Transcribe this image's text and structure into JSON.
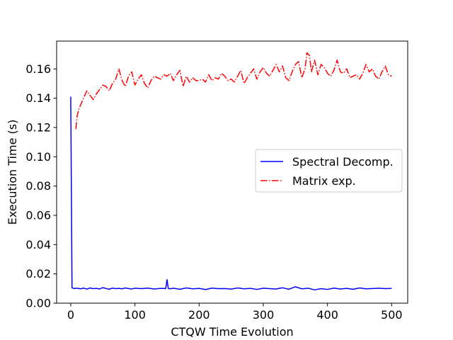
{
  "chart_data": {
    "type": "line",
    "title": "",
    "xlabel": "CTQW Time Evolution",
    "ylabel": "Execution Time (s)",
    "xlim": [
      -22,
      525
    ],
    "ylim": [
      0.0,
      0.179
    ],
    "xticks": [
      0,
      100,
      200,
      300,
      400,
      500
    ],
    "xtick_labels": [
      "0",
      "100",
      "200",
      "300",
      "400",
      "500"
    ],
    "yticks": [
      0.0,
      0.02,
      0.04,
      0.06,
      0.08,
      0.1,
      0.12,
      0.14,
      0.16
    ],
    "ytick_labels": [
      "0.00",
      "0.02",
      "0.04",
      "0.06",
      "0.08",
      "0.10",
      "0.12",
      "0.14",
      "0.16"
    ],
    "grid": false,
    "legend_position": "center-right",
    "series": [
      {
        "name": "Spectral Decomp.",
        "color": "#0000ff",
        "linestyle": "solid",
        "x": [
          0,
          2,
          5,
          10,
          15,
          20,
          25,
          30,
          35,
          40,
          45,
          50,
          55,
          60,
          65,
          70,
          75,
          80,
          85,
          90,
          95,
          100,
          110,
          120,
          130,
          140,
          148,
          150,
          152,
          154,
          160,
          170,
          180,
          190,
          200,
          210,
          220,
          230,
          240,
          250,
          260,
          270,
          280,
          290,
          300,
          310,
          320,
          330,
          340,
          350,
          360,
          370,
          380,
          390,
          400,
          410,
          420,
          430,
          440,
          450,
          460,
          470,
          480,
          490,
          500
        ],
        "values": [
          0.141,
          0.0105,
          0.01,
          0.0102,
          0.0098,
          0.0103,
          0.0096,
          0.0104,
          0.0099,
          0.0101,
          0.0097,
          0.0106,
          0.01,
          0.0095,
          0.0103,
          0.0099,
          0.0101,
          0.0098,
          0.0104,
          0.01,
          0.0097,
          0.0102,
          0.0099,
          0.0103,
          0.0097,
          0.0101,
          0.01,
          0.0161,
          0.01,
          0.0098,
          0.0102,
          0.0095,
          0.0104,
          0.0098,
          0.0101,
          0.0093,
          0.0103,
          0.0099,
          0.01,
          0.0096,
          0.0104,
          0.0098,
          0.0101,
          0.0094,
          0.0102,
          0.0099,
          0.0097,
          0.0105,
          0.0095,
          0.0112,
          0.0098,
          0.0102,
          0.0091,
          0.0099,
          0.0094,
          0.0103,
          0.0097,
          0.0101,
          0.0095,
          0.0104,
          0.0098,
          0.01,
          0.0102,
          0.0099,
          0.0101
        ]
      },
      {
        "name": "Matrix exp.",
        "color": "#ff0000",
        "linestyle": "dashdot",
        "x": [
          8,
          10,
          13,
          16,
          20,
          25,
          30,
          35,
          40,
          45,
          50,
          55,
          60,
          65,
          70,
          75,
          80,
          85,
          90,
          95,
          100,
          105,
          110,
          115,
          120,
          125,
          130,
          135,
          140,
          145,
          150,
          155,
          160,
          165,
          170,
          175,
          180,
          185,
          190,
          195,
          200,
          205,
          210,
          215,
          220,
          225,
          230,
          235,
          240,
          245,
          250,
          255,
          260,
          265,
          270,
          275,
          280,
          285,
          290,
          295,
          300,
          305,
          310,
          315,
          320,
          325,
          330,
          335,
          340,
          345,
          350,
          355,
          360,
          365,
          368,
          372,
          375,
          380,
          385,
          390,
          395,
          400,
          405,
          410,
          415,
          420,
          425,
          430,
          435,
          440,
          445,
          450,
          455,
          460,
          465,
          470,
          475,
          480,
          485,
          490,
          495,
          500
        ],
        "values": [
          0.119,
          0.128,
          0.133,
          0.136,
          0.14,
          0.145,
          0.142,
          0.139,
          0.143,
          0.146,
          0.149,
          0.148,
          0.145,
          0.15,
          0.153,
          0.16,
          0.152,
          0.148,
          0.155,
          0.158,
          0.149,
          0.153,
          0.156,
          0.15,
          0.147,
          0.152,
          0.155,
          0.154,
          0.153,
          0.156,
          0.155,
          0.157,
          0.152,
          0.156,
          0.159,
          0.148,
          0.155,
          0.151,
          0.154,
          0.152,
          0.152,
          0.153,
          0.151,
          0.156,
          0.152,
          0.154,
          0.153,
          0.157,
          0.155,
          0.152,
          0.153,
          0.151,
          0.155,
          0.159,
          0.15,
          0.154,
          0.157,
          0.16,
          0.153,
          0.158,
          0.161,
          0.157,
          0.155,
          0.159,
          0.163,
          0.158,
          0.162,
          0.154,
          0.152,
          0.158,
          0.163,
          0.165,
          0.154,
          0.16,
          0.171,
          0.169,
          0.158,
          0.166,
          0.156,
          0.163,
          0.161,
          0.157,
          0.155,
          0.159,
          0.166,
          0.158,
          0.157,
          0.16,
          0.154,
          0.155,
          0.156,
          0.153,
          0.157,
          0.163,
          0.158,
          0.16,
          0.155,
          0.153,
          0.158,
          0.162,
          0.156,
          0.155
        ]
      }
    ]
  }
}
